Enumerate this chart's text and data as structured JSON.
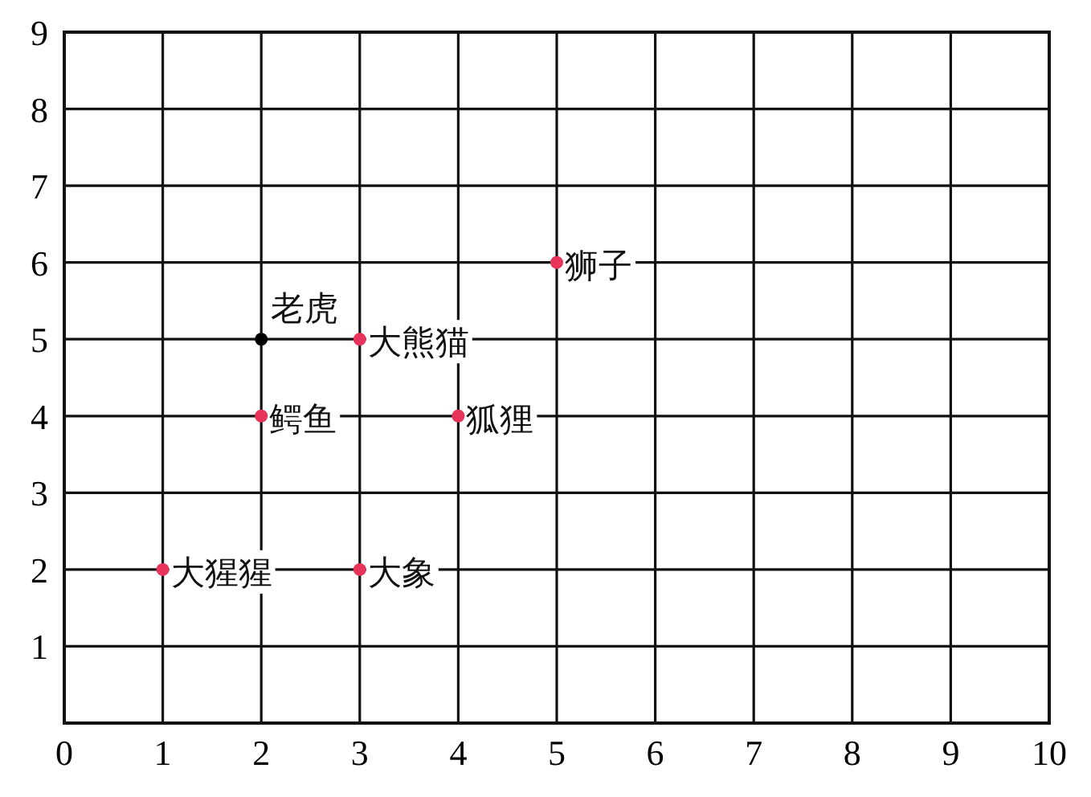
{
  "chart_data": {
    "type": "scatter",
    "x": [
      2,
      3,
      5,
      2,
      4,
      1,
      3
    ],
    "values": [
      5,
      5,
      6,
      4,
      4,
      2,
      2
    ],
    "colors": [
      "#000000",
      "#e8335a",
      "#e8335a",
      "#e8335a",
      "#e8335a",
      "#e8335a",
      "#e8335a"
    ],
    "marker": "circle",
    "xlim": [
      0,
      10
    ],
    "ylim": [
      0,
      9
    ],
    "xticks": [
      0,
      1,
      2,
      3,
      4,
      5,
      6,
      7,
      8,
      9,
      10
    ],
    "yticks": [
      {
        "value": 0,
        "label": null
      },
      1,
      2,
      3,
      4,
      5,
      6,
      7,
      8,
      9
    ],
    "grid": true,
    "annotations": [
      {
        "text": "老虎",
        "x": 2,
        "y": 5
      },
      {
        "text": "大熊猫",
        "x": 3,
        "y": 5
      },
      {
        "text": "狮子",
        "x": 5,
        "y": 6
      },
      {
        "text": "鳄鱼",
        "x": 2,
        "y": 4
      },
      {
        "text": "狐狸",
        "x": 4,
        "y": 4
      },
      {
        "text": "大猩猩",
        "x": 1,
        "y": 2
      },
      {
        "text": "大象",
        "x": 3,
        "y": 2
      }
    ]
  }
}
